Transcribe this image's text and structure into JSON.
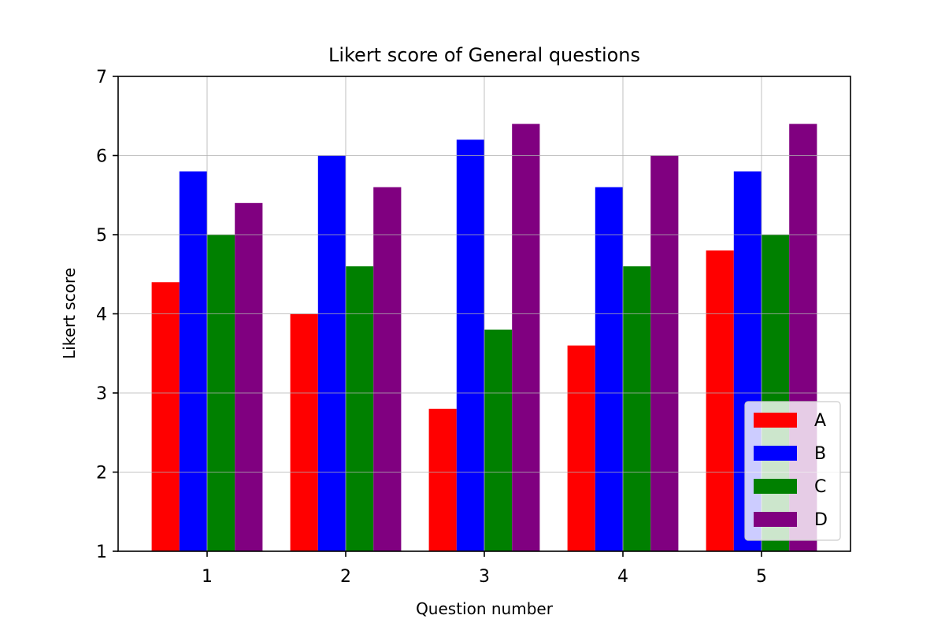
{
  "chart_data": {
    "type": "bar",
    "title": "Likert score of General questions",
    "xlabel": "Question number",
    "ylabel": "Likert score",
    "categories": [
      "1",
      "2",
      "3",
      "4",
      "5"
    ],
    "series": [
      {
        "name": "A",
        "color": "#ff0000",
        "values": [
          4.4,
          4.0,
          2.8,
          3.6,
          4.8
        ]
      },
      {
        "name": "B",
        "color": "#0000ff",
        "values": [
          5.8,
          6.0,
          6.2,
          5.6,
          5.8
        ]
      },
      {
        "name": "C",
        "color": "#008000",
        "values": [
          5.0,
          4.6,
          3.8,
          4.6,
          5.0
        ]
      },
      {
        "name": "D",
        "color": "#800080",
        "values": [
          5.4,
          5.6,
          6.4,
          6.0,
          6.4
        ]
      }
    ],
    "ylim": [
      1,
      7
    ],
    "yticks": [
      "1",
      "2",
      "3",
      "4",
      "5",
      "6",
      "7"
    ],
    "grid": true,
    "legend_position": "lower-right"
  }
}
